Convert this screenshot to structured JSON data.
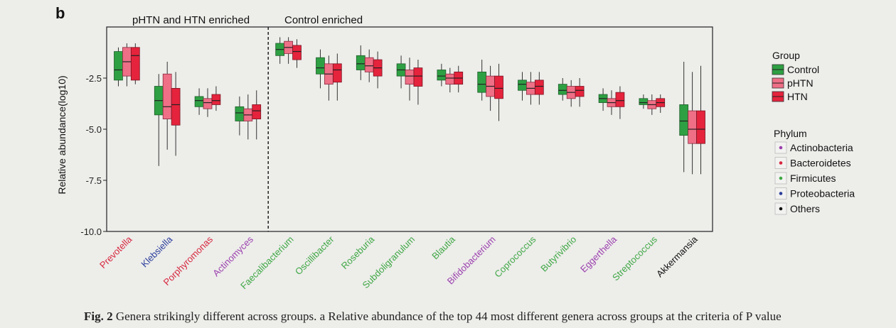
{
  "panel_label": "b",
  "caption_text": "Genera strikingly different across groups. a Relative abundance of the top 44 most different genera across groups at the criteria of P value",
  "sections": {
    "left": "pHTN and HTN enriched",
    "right": "Control enriched"
  },
  "colors": {
    "Control": "#2ea043",
    "pHTN": "#ef6f87",
    "HTN": "#e5233c",
    "Actinobacteria": "#9b3fae",
    "Bacteroidetes": "#d7263d",
    "Firmicutes": "#3fa845",
    "Proteobacteria": "#2a3d9c",
    "Others": "#111111"
  },
  "legends": {
    "group_title": "Group",
    "groups": [
      "Control",
      "pHTN",
      "HTN"
    ],
    "phylum_title": "Phylum",
    "phyla": [
      "Actinobacteria",
      "Bacteroidetes",
      "Firmicutes",
      "Proteobacteria",
      "Others"
    ]
  },
  "chart_data": {
    "type": "box",
    "ylabel": "Relative abundance(log10)",
    "xlabel": "",
    "ylim": [
      -10.0,
      0.0
    ],
    "yticks": [
      -10.0,
      -7.5,
      -5.0,
      -2.5
    ],
    "ytick_labels": [
      "-10.0",
      "-7.5",
      "-5.0",
      "-2.5"
    ],
    "divider_after_index": 3,
    "groups": [
      "Control",
      "pHTN",
      "HTN"
    ],
    "genera": [
      {
        "name": "Prevotella",
        "phylum": "Bacteroidetes",
        "boxes": [
          {
            "q1": -2.6,
            "med": -2.1,
            "q3": -1.2,
            "lo": -2.9,
            "hi": -1.0
          },
          {
            "q1": -2.4,
            "med": -1.7,
            "q3": -1.0,
            "lo": -2.9,
            "hi": -0.8
          },
          {
            "q1": -2.6,
            "med": -1.4,
            "q3": -1.0,
            "lo": -2.8,
            "hi": -0.8
          }
        ]
      },
      {
        "name": "Klebsiella",
        "phylum": "Proteobacteria",
        "boxes": [
          {
            "q1": -4.3,
            "med": -3.6,
            "q3": -2.9,
            "lo": -6.8,
            "hi": -2.3
          },
          {
            "q1": -4.5,
            "med": -3.9,
            "q3": -2.3,
            "lo": -6.0,
            "hi": -1.7
          },
          {
            "q1": -4.8,
            "med": -3.8,
            "q3": -3.0,
            "lo": -6.3,
            "hi": -2.2
          }
        ]
      },
      {
        "name": "Porphyromonas",
        "phylum": "Bacteroidetes",
        "boxes": [
          {
            "q1": -3.9,
            "med": -3.6,
            "q3": -3.4,
            "lo": -4.3,
            "hi": -3.0
          },
          {
            "q1": -4.0,
            "med": -3.7,
            "q3": -3.5,
            "lo": -4.4,
            "hi": -3.0
          },
          {
            "q1": -3.8,
            "med": -3.6,
            "q3": -3.3,
            "lo": -4.1,
            "hi": -2.9
          }
        ]
      },
      {
        "name": "Actinomyces",
        "phylum": "Actinobacteria",
        "boxes": [
          {
            "q1": -4.6,
            "med": -4.2,
            "q3": -3.9,
            "lo": -5.3,
            "hi": -3.4
          },
          {
            "q1": -4.6,
            "med": -4.3,
            "q3": -4.0,
            "lo": -5.5,
            "hi": -3.3
          },
          {
            "q1": -4.5,
            "med": -4.1,
            "q3": -3.8,
            "lo": -5.5,
            "hi": -3.1
          }
        ]
      },
      {
        "name": "Faecalibacterium",
        "phylum": "Firmicutes",
        "boxes": [
          {
            "q1": -1.4,
            "med": -1.1,
            "q3": -0.8,
            "lo": -1.8,
            "hi": -0.5
          },
          {
            "q1": -1.3,
            "med": -1.0,
            "q3": -0.7,
            "lo": -1.8,
            "hi": -0.5
          },
          {
            "q1": -1.6,
            "med": -1.2,
            "q3": -0.9,
            "lo": -2.0,
            "hi": -0.6
          }
        ]
      },
      {
        "name": "Oscillibacter",
        "phylum": "Firmicutes",
        "boxes": [
          {
            "q1": -2.3,
            "med": -2.0,
            "q3": -1.5,
            "lo": -3.0,
            "hi": -1.1
          },
          {
            "q1": -2.8,
            "med": -2.3,
            "q3": -1.8,
            "lo": -3.6,
            "hi": -1.4
          },
          {
            "q1": -2.7,
            "med": -2.1,
            "q3": -1.8,
            "lo": -3.6,
            "hi": -1.3
          }
        ]
      },
      {
        "name": "Roseburia",
        "phylum": "Firmicutes",
        "boxes": [
          {
            "q1": -2.1,
            "med": -1.8,
            "q3": -1.4,
            "lo": -2.6,
            "hi": -0.9
          },
          {
            "q1": -2.2,
            "med": -1.9,
            "q3": -1.5,
            "lo": -2.7,
            "hi": -1.1
          },
          {
            "q1": -2.4,
            "med": -2.0,
            "q3": -1.6,
            "lo": -3.0,
            "hi": -1.2
          }
        ]
      },
      {
        "name": "Subdoligranulum",
        "phylum": "Firmicutes",
        "boxes": [
          {
            "q1": -2.4,
            "med": -2.1,
            "q3": -1.8,
            "lo": -3.0,
            "hi": -1.4
          },
          {
            "q1": -2.8,
            "med": -2.4,
            "q3": -2.1,
            "lo": -3.6,
            "hi": -1.5
          },
          {
            "q1": -2.9,
            "med": -2.4,
            "q3": -2.0,
            "lo": -3.8,
            "hi": -1.6
          }
        ]
      },
      {
        "name": "Blautia",
        "phylum": "Firmicutes",
        "boxes": [
          {
            "q1": -2.6,
            "med": -2.4,
            "q3": -2.1,
            "lo": -2.9,
            "hi": -1.8
          },
          {
            "q1": -2.8,
            "med": -2.5,
            "q3": -2.3,
            "lo": -3.2,
            "hi": -2.0
          },
          {
            "q1": -2.8,
            "med": -2.5,
            "q3": -2.2,
            "lo": -3.2,
            "hi": -1.9
          }
        ]
      },
      {
        "name": "Bifidobacterium",
        "phylum": "Actinobacteria",
        "boxes": [
          {
            "q1": -3.2,
            "med": -2.8,
            "q3": -2.2,
            "lo": -3.6,
            "hi": -1.6
          },
          {
            "q1": -3.4,
            "med": -2.9,
            "q3": -2.4,
            "lo": -4.1,
            "hi": -1.9
          },
          {
            "q1": -3.5,
            "med": -3.0,
            "q3": -2.4,
            "lo": -4.6,
            "hi": -1.8
          }
        ]
      },
      {
        "name": "Coprococcus",
        "phylum": "Firmicutes",
        "boxes": [
          {
            "q1": -3.1,
            "med": -2.8,
            "q3": -2.6,
            "lo": -3.6,
            "hi": -2.2
          },
          {
            "q1": -3.3,
            "med": -3.0,
            "q3": -2.7,
            "lo": -3.8,
            "hi": -2.2
          },
          {
            "q1": -3.3,
            "med": -2.9,
            "q3": -2.6,
            "lo": -3.8,
            "hi": -2.2
          }
        ]
      },
      {
        "name": "Butyrivibrio",
        "phylum": "Firmicutes",
        "boxes": [
          {
            "q1": -3.3,
            "med": -3.1,
            "q3": -2.8,
            "lo": -3.6,
            "hi": -2.5
          },
          {
            "q1": -3.5,
            "med": -3.2,
            "q3": -2.9,
            "lo": -3.9,
            "hi": -2.6
          },
          {
            "q1": -3.4,
            "med": -3.1,
            "q3": -2.9,
            "lo": -3.9,
            "hi": -2.5
          }
        ]
      },
      {
        "name": "Eggerthella",
        "phylum": "Actinobacteria",
        "boxes": [
          {
            "q1": -3.7,
            "med": -3.5,
            "q3": -3.3,
            "lo": -4.1,
            "hi": -3.0
          },
          {
            "q1": -3.9,
            "med": -3.7,
            "q3": -3.5,
            "lo": -4.3,
            "hi": -3.1
          },
          {
            "q1": -3.9,
            "med": -3.6,
            "q3": -3.2,
            "lo": -4.5,
            "hi": -2.9
          }
        ]
      },
      {
        "name": "Streptococcus",
        "phylum": "Firmicutes",
        "boxes": [
          {
            "q1": -3.8,
            "med": -3.7,
            "q3": -3.5,
            "lo": -4.0,
            "hi": -3.3
          },
          {
            "q1": -4.0,
            "med": -3.8,
            "q3": -3.6,
            "lo": -4.3,
            "hi": -3.3
          },
          {
            "q1": -3.9,
            "med": -3.7,
            "q3": -3.5,
            "lo": -4.2,
            "hi": -3.3
          }
        ]
      },
      {
        "name": "Akkermansia",
        "phylum": "Others",
        "boxes": [
          {
            "q1": -5.3,
            "med": -4.6,
            "q3": -3.8,
            "lo": -7.1,
            "hi": -1.7
          },
          {
            "q1": -5.7,
            "med": -5.0,
            "q3": -4.1,
            "lo": -7.2,
            "hi": -2.2
          },
          {
            "q1": -5.7,
            "med": -5.0,
            "q3": -4.1,
            "lo": -7.2,
            "hi": -1.9
          }
        ]
      }
    ]
  }
}
